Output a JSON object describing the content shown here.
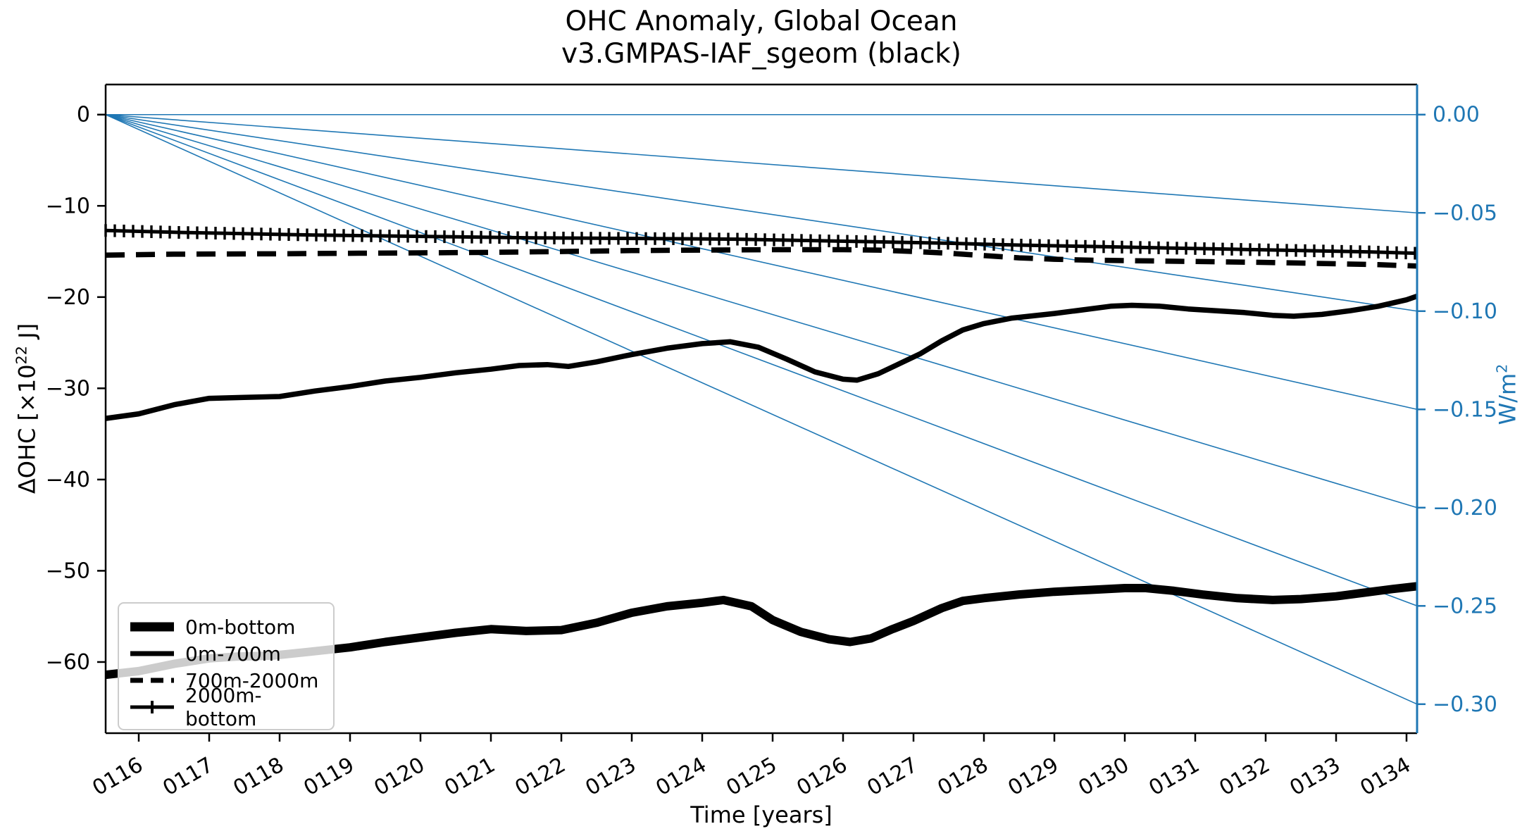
{
  "figure": {
    "title": "OHC Anomaly, Global Ocean",
    "subtitle": "v3.GMPAS-IAF_sgeom (black)"
  },
  "chart_data": {
    "type": "line",
    "title": "OHC Anomaly, Global Ocean",
    "subtitle": "v3.GMPAS-IAF_sgeom (black)",
    "xlabel": "Time [years]",
    "ylabel_left": {
      "prefix": "ΔOHC [×10",
      "sup": "22",
      "suffix": " J]"
    },
    "ylabel_right": {
      "prefix": "W/m",
      "sup": "2"
    },
    "xlim": [
      115.53,
      134.15
    ],
    "ylim_left": [
      -67.8,
      3.3
    ],
    "x_tick_years": [
      116,
      117,
      118,
      119,
      120,
      121,
      122,
      123,
      124,
      125,
      126,
      127,
      128,
      129,
      130,
      131,
      132,
      133,
      134
    ],
    "x_tick_labels": [
      "0116",
      "0117",
      "0118",
      "0119",
      "0120",
      "0121",
      "0122",
      "0123",
      "0124",
      "0125",
      "0126",
      "0127",
      "0128",
      "0129",
      "0130",
      "0131",
      "0132",
      "0133",
      "0134"
    ],
    "y_ticks_left": [
      {
        "value": 0,
        "label": "0"
      },
      {
        "value": -10,
        "label": "−10"
      },
      {
        "value": -20,
        "label": "−20"
      },
      {
        "value": -30,
        "label": "−30"
      },
      {
        "value": -40,
        "label": "−40"
      },
      {
        "value": -50,
        "label": "−50"
      },
      {
        "value": -60,
        "label": "−60"
      }
    ],
    "y_ticks_right": [
      {
        "value": 0.0,
        "label": "0.00"
      },
      {
        "value": -0.05,
        "label": "−0.05"
      },
      {
        "value": -0.1,
        "label": "−0.10"
      },
      {
        "value": -0.15,
        "label": "−0.15"
      },
      {
        "value": -0.2,
        "label": "−0.20"
      },
      {
        "value": -0.25,
        "label": "−0.25"
      },
      {
        "value": -0.3,
        "label": "−0.30"
      }
    ],
    "right_axis_ohc_per_wm2": 215.4,
    "reference_lines_wm2": [
      0.0,
      -0.05,
      -0.1,
      -0.15,
      -0.2,
      -0.25,
      -0.3
    ],
    "colors": {
      "accent_blue": "#1f77b4",
      "line_black": "#000000"
    },
    "legend": [
      {
        "label": "0m-bottom",
        "style": "thick"
      },
      {
        "label": "0m-700m",
        "style": "solid"
      },
      {
        "label": "700m-2000m",
        "style": "dashed"
      },
      {
        "label": "2000m-bottom",
        "style": "plus"
      }
    ],
    "series": [
      {
        "name": "0m-bottom",
        "style": "thick",
        "points": [
          [
            115.53,
            -61.4
          ],
          [
            116,
            -61.0
          ],
          [
            116.5,
            -60.2
          ],
          [
            117,
            -59.6
          ],
          [
            117.4,
            -59.4
          ],
          [
            117.9,
            -59.3
          ],
          [
            118.4,
            -58.9
          ],
          [
            119,
            -58.4
          ],
          [
            119.5,
            -57.8
          ],
          [
            120,
            -57.3
          ],
          [
            120.5,
            -56.8
          ],
          [
            121,
            -56.4
          ],
          [
            121.5,
            -56.6
          ],
          [
            122,
            -56.5
          ],
          [
            122.5,
            -55.7
          ],
          [
            123,
            -54.6
          ],
          [
            123.5,
            -53.9
          ],
          [
            124,
            -53.5
          ],
          [
            124.3,
            -53.2
          ],
          [
            124.7,
            -53.9
          ],
          [
            125,
            -55.4
          ],
          [
            125.4,
            -56.7
          ],
          [
            125.8,
            -57.5
          ],
          [
            126.1,
            -57.8
          ],
          [
            126.4,
            -57.4
          ],
          [
            126.7,
            -56.4
          ],
          [
            127,
            -55.5
          ],
          [
            127.4,
            -54.1
          ],
          [
            127.7,
            -53.3
          ],
          [
            128,
            -53.0
          ],
          [
            128.5,
            -52.6
          ],
          [
            129,
            -52.3
          ],
          [
            129.5,
            -52.1
          ],
          [
            130,
            -51.9
          ],
          [
            130.3,
            -51.9
          ],
          [
            130.7,
            -52.2
          ],
          [
            131.1,
            -52.6
          ],
          [
            131.6,
            -53.0
          ],
          [
            132.1,
            -53.2
          ],
          [
            132.5,
            -53.1
          ],
          [
            133,
            -52.8
          ],
          [
            133.4,
            -52.4
          ],
          [
            133.8,
            -52.0
          ],
          [
            134.15,
            -51.7
          ]
        ]
      },
      {
        "name": "0m-700m",
        "style": "solid",
        "points": [
          [
            115.53,
            -33.3
          ],
          [
            116,
            -32.8
          ],
          [
            116.5,
            -31.8
          ],
          [
            117,
            -31.1
          ],
          [
            117.5,
            -31.0
          ],
          [
            118,
            -30.9
          ],
          [
            118.5,
            -30.3
          ],
          [
            119,
            -29.8
          ],
          [
            119.5,
            -29.2
          ],
          [
            120,
            -28.8
          ],
          [
            120.5,
            -28.3
          ],
          [
            121,
            -27.9
          ],
          [
            121.4,
            -27.5
          ],
          [
            121.8,
            -27.4
          ],
          [
            122.1,
            -27.6
          ],
          [
            122.5,
            -27.1
          ],
          [
            123,
            -26.3
          ],
          [
            123.5,
            -25.6
          ],
          [
            124,
            -25.1
          ],
          [
            124.4,
            -24.9
          ],
          [
            124.8,
            -25.5
          ],
          [
            125.2,
            -26.8
          ],
          [
            125.6,
            -28.2
          ],
          [
            126,
            -29.0
          ],
          [
            126.2,
            -29.1
          ],
          [
            126.5,
            -28.4
          ],
          [
            126.8,
            -27.3
          ],
          [
            127.1,
            -26.2
          ],
          [
            127.4,
            -24.8
          ],
          [
            127.7,
            -23.6
          ],
          [
            128,
            -22.9
          ],
          [
            128.4,
            -22.3
          ],
          [
            129,
            -21.8
          ],
          [
            129.4,
            -21.4
          ],
          [
            129.8,
            -21.0
          ],
          [
            130.1,
            -20.9
          ],
          [
            130.5,
            -21.0
          ],
          [
            130.9,
            -21.3
          ],
          [
            131.3,
            -21.5
          ],
          [
            131.7,
            -21.7
          ],
          [
            132.1,
            -22.0
          ],
          [
            132.4,
            -22.1
          ],
          [
            132.8,
            -21.9
          ],
          [
            133.2,
            -21.5
          ],
          [
            133.6,
            -21.0
          ],
          [
            134,
            -20.3
          ],
          [
            134.15,
            -19.9
          ]
        ]
      },
      {
        "name": "700m-2000m",
        "style": "dashed",
        "points": [
          [
            115.53,
            -15.4
          ],
          [
            116.5,
            -15.3
          ],
          [
            118,
            -15.25
          ],
          [
            119,
            -15.2
          ],
          [
            120,
            -15.15
          ],
          [
            121,
            -15.1
          ],
          [
            122,
            -15.0
          ],
          [
            123,
            -14.9
          ],
          [
            124,
            -14.85
          ],
          [
            125,
            -14.8
          ],
          [
            126,
            -14.8
          ],
          [
            126.5,
            -14.85
          ],
          [
            127,
            -15.0
          ],
          [
            127.5,
            -15.2
          ],
          [
            128,
            -15.45
          ],
          [
            128.5,
            -15.7
          ],
          [
            129,
            -15.85
          ],
          [
            129.5,
            -15.95
          ],
          [
            130,
            -16.0
          ],
          [
            131,
            -16.1
          ],
          [
            132,
            -16.2
          ],
          [
            133,
            -16.35
          ],
          [
            133.6,
            -16.45
          ],
          [
            134.15,
            -16.6
          ]
        ]
      },
      {
        "name": "2000m-bottom",
        "style": "plus",
        "points": [
          [
            115.53,
            -12.7
          ],
          [
            116.5,
            -12.9
          ],
          [
            117.5,
            -13.05
          ],
          [
            118.5,
            -13.2
          ],
          [
            119.5,
            -13.3
          ],
          [
            120.5,
            -13.4
          ],
          [
            121.5,
            -13.5
          ],
          [
            122.5,
            -13.55
          ],
          [
            123.5,
            -13.6
          ],
          [
            124.5,
            -13.65
          ],
          [
            125.5,
            -13.8
          ],
          [
            126.5,
            -13.95
          ],
          [
            127.5,
            -14.1
          ],
          [
            128.5,
            -14.3
          ],
          [
            129.5,
            -14.45
          ],
          [
            130.5,
            -14.6
          ],
          [
            131.5,
            -14.75
          ],
          [
            132.5,
            -14.9
          ],
          [
            133.5,
            -15.05
          ],
          [
            134.15,
            -15.2
          ]
        ]
      }
    ]
  }
}
